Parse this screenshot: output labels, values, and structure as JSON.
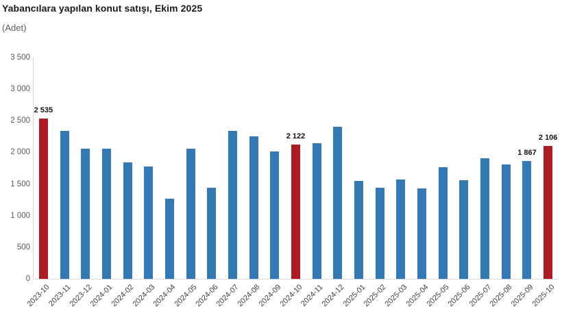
{
  "header": {
    "title": "Yabancılara yapılan konut satışı, Ekim 2025",
    "subtitle": "(Adet)"
  },
  "colors": {
    "bar": "#3379B5",
    "bar_highlight": "#AE1B22",
    "axis_line": "#D9D9D9",
    "ytick_text": "#595959",
    "xtick_text": "#404040",
    "value_label_text": "#111111"
  },
  "chart_data": {
    "type": "bar",
    "title": "Yabancılara yapılan konut satışı, Ekim 2025",
    "ylabel": "(Adet)",
    "categories": [
      "2023-10",
      "2023-11",
      "2023-12",
      "2024-01",
      "2024-02",
      "2024-03",
      "2024-04",
      "2024-05",
      "2024-06",
      "2024-07",
      "2024-08",
      "2024-09",
      "2024-10",
      "2024-11",
      "2024-12",
      "2025-01",
      "2025-02",
      "2025-03",
      "2025-04",
      "2025-05",
      "2025-06",
      "2025-07",
      "2025-08",
      "2025-09",
      "2025-10"
    ],
    "values": [
      2535,
      2340,
      2060,
      2055,
      1840,
      1775,
      1270,
      2060,
      1440,
      2340,
      2250,
      2020,
      2122,
      2145,
      2410,
      1545,
      1445,
      1570,
      1435,
      1765,
      1560,
      1910,
      1810,
      1867,
      2106
    ],
    "highlighted_categories": [
      "2023-10",
      "2024-10",
      "2025-10"
    ],
    "value_labels": {
      "2023-10": "2 535",
      "2024-10": "2 122",
      "2025-09": "1 867",
      "2025-10": "2 106"
    },
    "ylim": [
      0,
      3500
    ],
    "yticks": [
      "0",
      "500",
      "1 000",
      "1 500",
      "2 000",
      "2 500",
      "3 000",
      "3 500"
    ],
    "grid": false,
    "legend": false,
    "xtick_rotation_deg": 45
  }
}
